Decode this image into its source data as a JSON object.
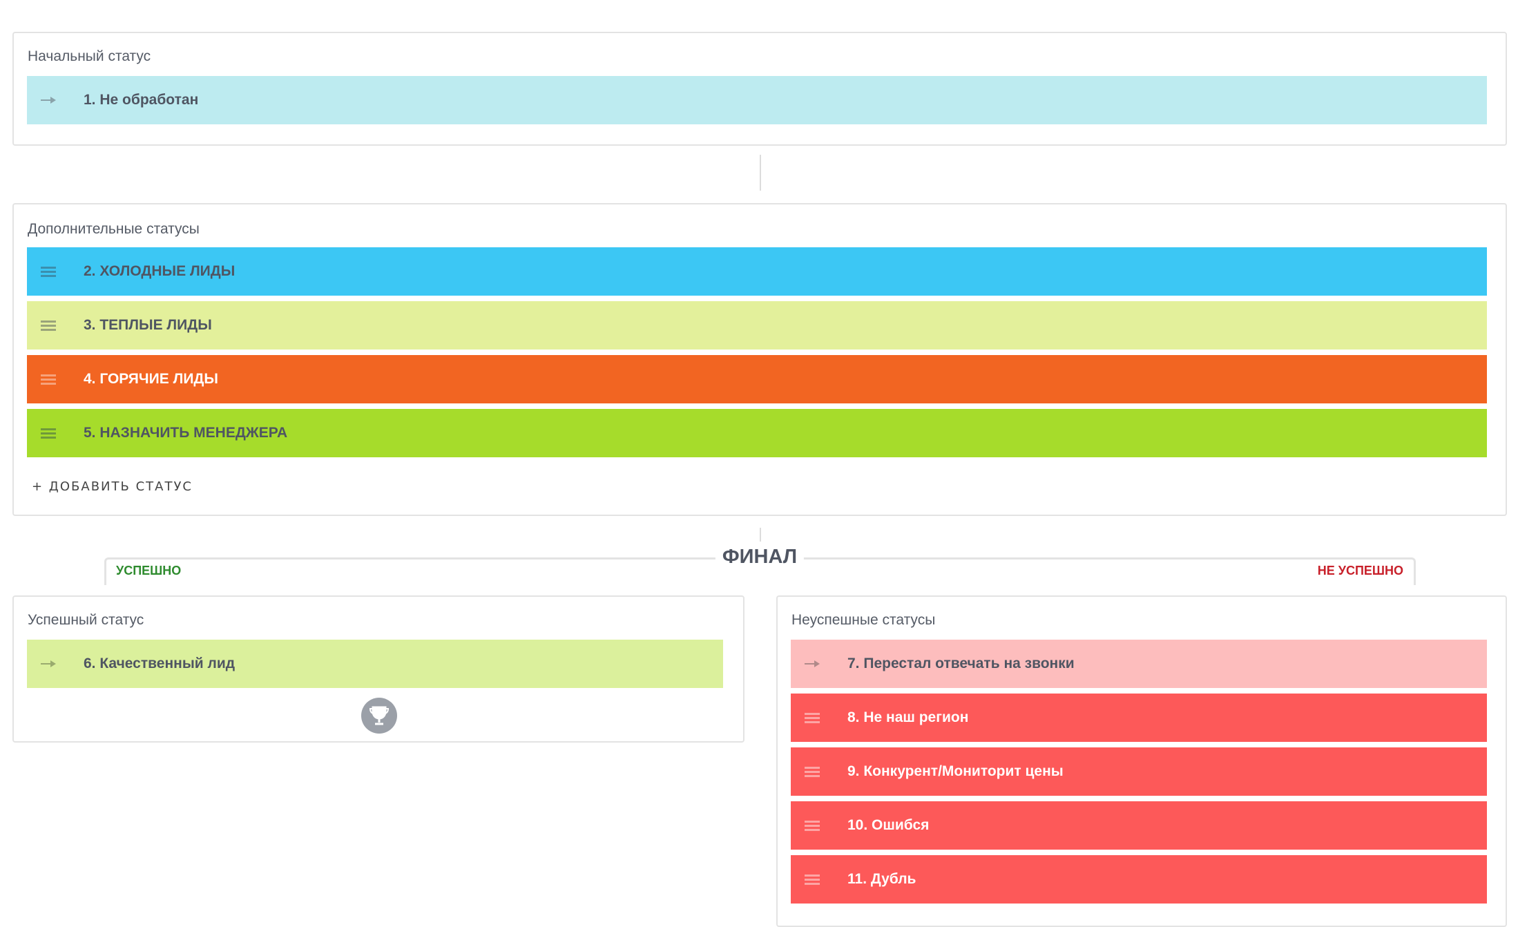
{
  "initial": {
    "label": "Начальный статус",
    "items": [
      {
        "text": "1. Не обработан",
        "icon": "arrow-right-icon",
        "color": "#bdebf0"
      }
    ]
  },
  "additional": {
    "label": "Дополнительные статусы",
    "items": [
      {
        "text": "2. ХОЛОДНЫЕ ЛИДЫ",
        "icon": "drag-handle-icon",
        "color": "#3cc7f4"
      },
      {
        "text": "3. ТЕПЛЫЕ ЛИДЫ",
        "icon": "drag-handle-icon",
        "color": "#e3f09b"
      },
      {
        "text": "4. ГОРЯЧИЕ ЛИДЫ",
        "icon": "drag-handle-icon",
        "color": "#f26522"
      },
      {
        "text": "5. НАЗНАЧИТЬ МЕНЕДЖЕРА",
        "icon": "drag-handle-icon",
        "color": "#a6dc2b"
      }
    ],
    "add_label": "+ ДОБАВИТЬ СТАТУС"
  },
  "final": {
    "title": "ФИНАЛ",
    "success_label": "УСПЕШНО",
    "fail_label": "НЕ УСПЕШНО",
    "success_color": "#2e8b2e",
    "fail_color": "#c8202a"
  },
  "success": {
    "label": "Успешный статус",
    "items": [
      {
        "text": "6. Качественный лид",
        "icon": "arrow-right-icon",
        "color": "#dbf09c"
      }
    ],
    "icon": "trophy-icon"
  },
  "fail": {
    "label": "Неуспешные статусы",
    "items": [
      {
        "text": "7. Перестал отвечать на звонки",
        "icon": "arrow-right-icon",
        "color": "#fdbdbd"
      },
      {
        "text": "8. Не наш регион",
        "icon": "drag-handle-icon",
        "color": "#fd5959"
      },
      {
        "text": "9. Конкурент/Мониторит цены",
        "icon": "drag-handle-icon",
        "color": "#fd5959"
      },
      {
        "text": "10. Ошибся",
        "icon": "drag-handle-icon",
        "color": "#fd5959"
      },
      {
        "text": "11. Дубль",
        "icon": "drag-handle-icon",
        "color": "#fd5959"
      }
    ]
  }
}
